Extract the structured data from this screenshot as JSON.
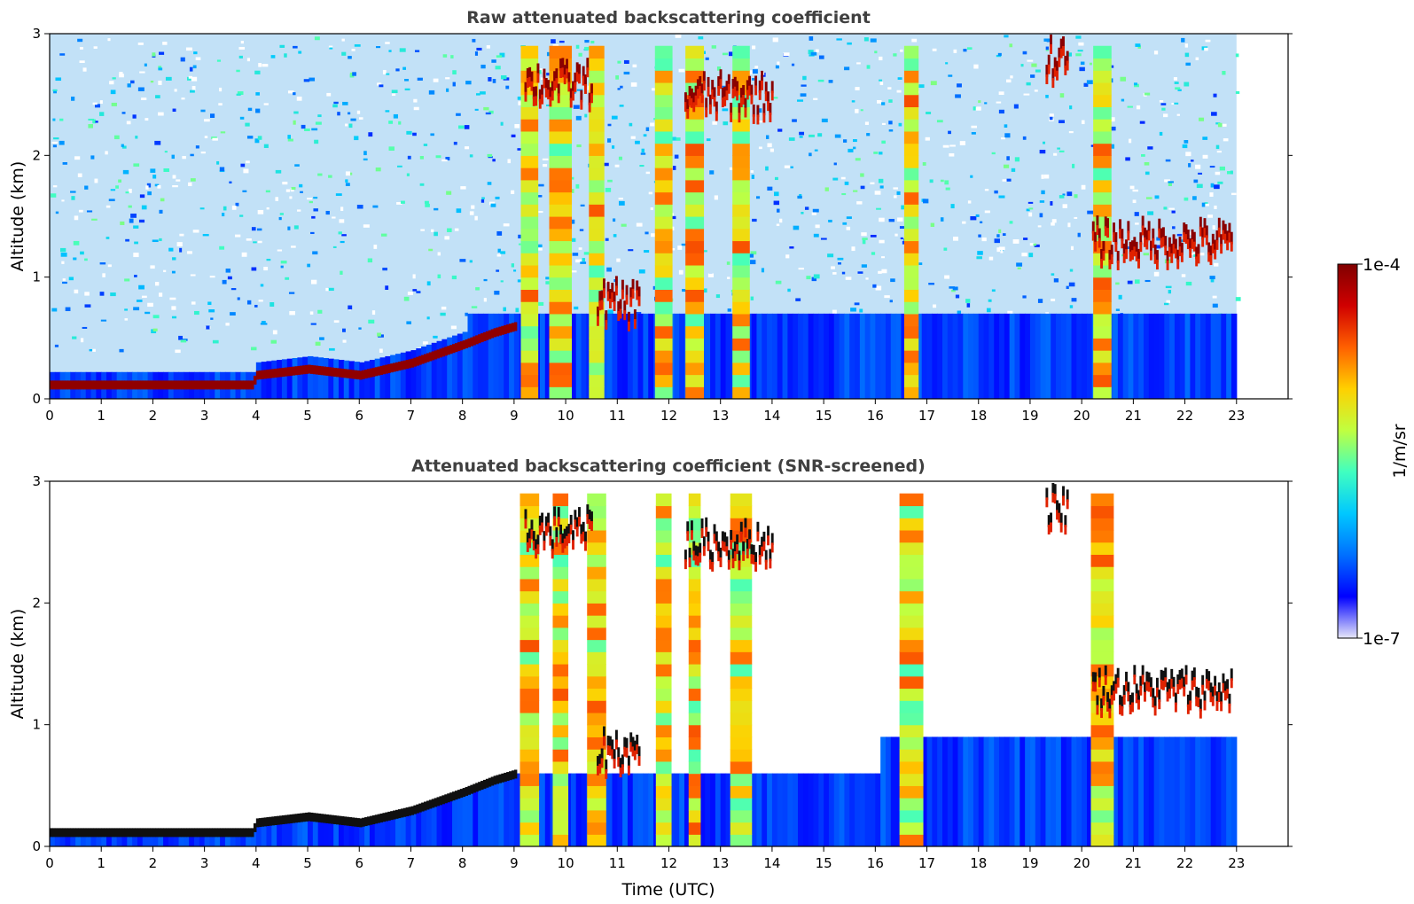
{
  "chart_data": [
    {
      "type": "heatmap",
      "title": "Raw attenuated backscattering coefficient",
      "xlabel": "",
      "ylabel": "Altitude (km)",
      "xlim": [
        0,
        24
      ],
      "ylim": [
        0,
        3
      ],
      "x_ticks": [
        "0",
        "1",
        "2",
        "3",
        "4",
        "5",
        "6",
        "7",
        "8",
        "9",
        "10",
        "11",
        "12",
        "13",
        "14",
        "15",
        "16",
        "17",
        "18",
        "19",
        "20",
        "21",
        "22",
        "23"
      ],
      "y_ticks": [
        "0",
        "1",
        "2",
        "3"
      ],
      "data_end_time": 23.0,
      "features": {
        "surface_layer_top_km": [
          [
            0,
            0.12
          ],
          [
            3.9,
            0.12
          ],
          [
            4.0,
            0.2
          ],
          [
            5.0,
            0.25
          ],
          [
            6.0,
            0.2
          ],
          [
            7.0,
            0.3
          ],
          [
            8.0,
            0.45
          ],
          [
            8.6,
            0.55
          ],
          [
            9.0,
            0.6
          ]
        ],
        "cloud_layers": [
          {
            "t_start": 9.2,
            "t_end": 10.5,
            "alt_km": 2.6
          },
          {
            "t_start": 10.6,
            "t_end": 11.4,
            "alt_km": 0.8
          },
          {
            "t_start": 12.3,
            "t_end": 14.0,
            "alt_km": 2.5
          },
          {
            "t_start": 19.3,
            "t_end": 19.7,
            "alt_km": 2.8
          },
          {
            "t_start": 20.2,
            "t_end": 22.9,
            "alt_km": 1.3
          }
        ],
        "precipitation_columns_utc": [
          9.3,
          9.9,
          10.6,
          11.9,
          12.5,
          13.4,
          16.7,
          20.4
        ]
      }
    },
    {
      "type": "heatmap",
      "title": "Attenuated backscattering coefficient (SNR-screened)",
      "xlabel": "Time (UTC)",
      "ylabel": "Altitude (km)",
      "xlim": [
        0,
        24
      ],
      "ylim": [
        0,
        3
      ],
      "x_ticks": [
        "0",
        "1",
        "2",
        "3",
        "4",
        "5",
        "6",
        "7",
        "8",
        "9",
        "10",
        "11",
        "12",
        "13",
        "14",
        "15",
        "16",
        "17",
        "18",
        "19",
        "20",
        "21",
        "22",
        "23"
      ],
      "y_ticks": [
        "0",
        "1",
        "2",
        "3"
      ],
      "data_end_time": 23.0,
      "screening": "low-SNR pixels removed (white)"
    }
  ],
  "colorbar": {
    "label": "1/m/sr",
    "max_label": "1e-4",
    "min_label": "1e-7",
    "scale": "log",
    "colors": [
      "#e6e6f8",
      "#0000ff",
      "#0070ff",
      "#00c8ff",
      "#40ffc0",
      "#c0ff40",
      "#ffd000",
      "#ff6000",
      "#d00000",
      "#800000"
    ]
  }
}
